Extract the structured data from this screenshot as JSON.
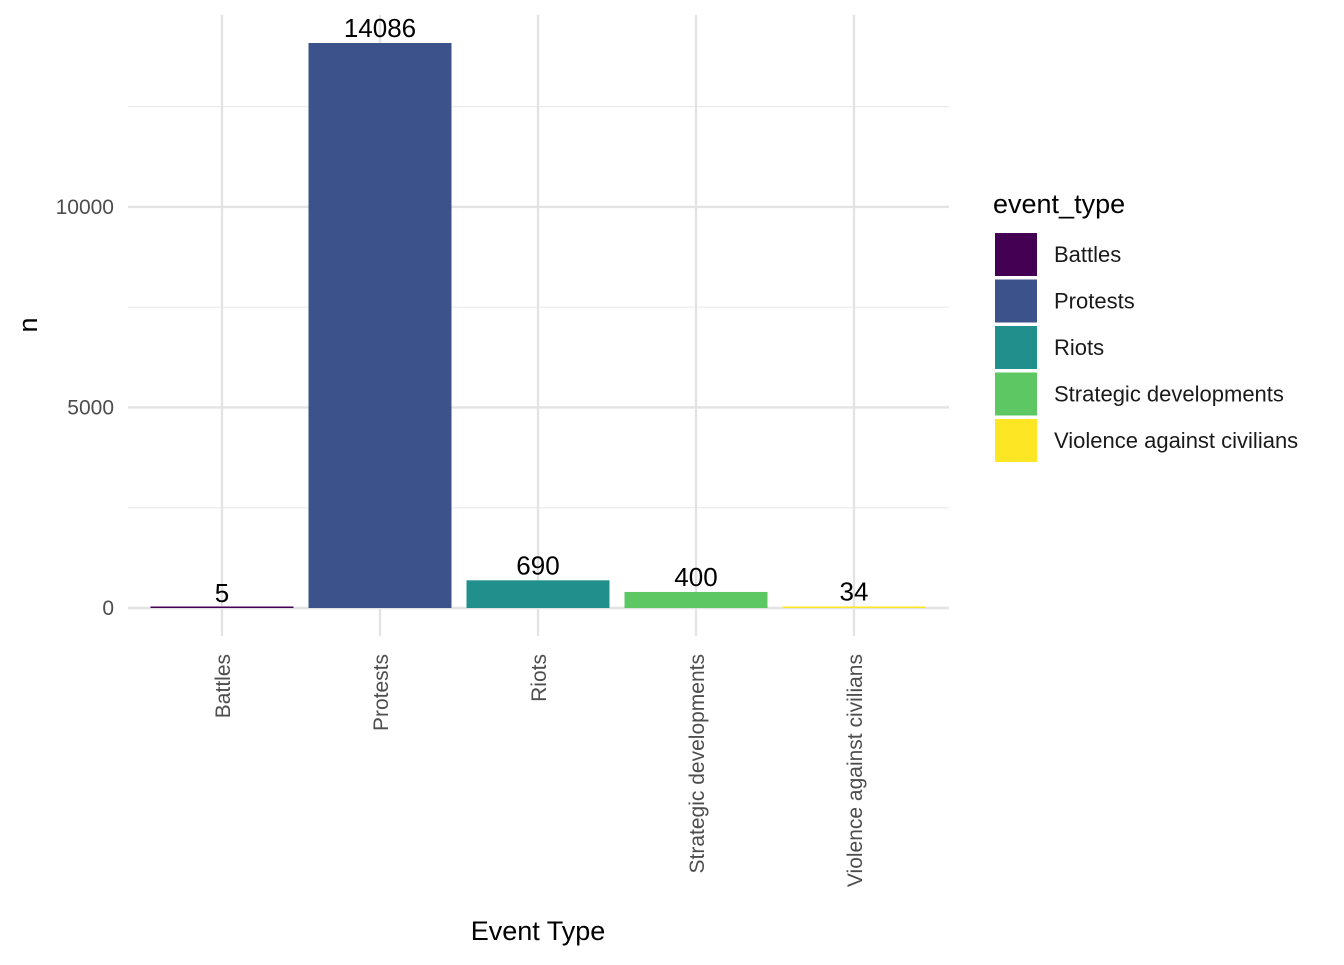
{
  "chart_data": {
    "type": "bar",
    "categories": [
      "Battles",
      "Protests",
      "Riots",
      "Strategic developments",
      "Violence against civilians"
    ],
    "values": [
      5,
      14086,
      690,
      400,
      34
    ],
    "data_labels": [
      "5",
      "14086",
      "690",
      "400",
      "34"
    ],
    "xlabel": "Event Type",
    "ylabel": "n",
    "ylim": [
      0,
      14786
    ],
    "yticks": [
      0,
      5000,
      10000
    ],
    "ytick_labels": [
      "0",
      "5000",
      "10000"
    ],
    "grid": true,
    "x_tick_rotation": "vertical",
    "legend": {
      "title": "event_type",
      "placement": "right",
      "entries": [
        "Battles",
        "Protests",
        "Riots",
        "Strategic developments",
        "Violence against civilians"
      ]
    },
    "colors": [
      "#440154",
      "#3b528b",
      "#21908c",
      "#5dc863",
      "#fde725"
    ]
  }
}
